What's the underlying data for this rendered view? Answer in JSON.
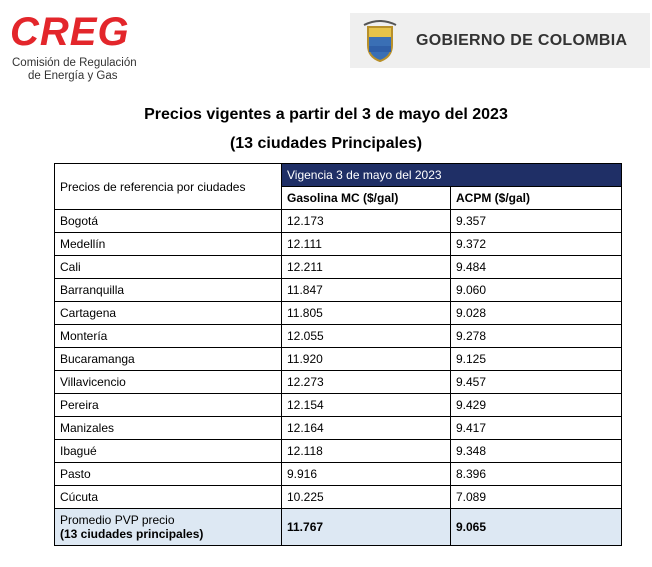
{
  "header": {
    "logo_text": "CREG",
    "logo_subtitle_1": "Comisión de Regulación",
    "logo_subtitle_2": "de Energía y Gas",
    "government": "GOBIERNO DE COLOMBIA"
  },
  "title": "Precios vigentes a partir del 3 de mayo del 2023",
  "subtitle": "(13 ciudades Principales)",
  "table": {
    "row_header": "Precios de referencia por ciudades",
    "group_header": "Vigencia 3 de mayo del 2023",
    "columns": [
      "Gasolina MC ($/gal)",
      "ACPM ($/gal)"
    ],
    "rows": [
      [
        "Bogotá",
        "12.173",
        "9.357"
      ],
      [
        "Medellín",
        "12.111",
        "9.372"
      ],
      [
        "Cali",
        "12.211",
        "9.484"
      ],
      [
        "Barranquilla",
        "11.847",
        "9.060"
      ],
      [
        "Cartagena",
        "11.805",
        "9.028"
      ],
      [
        "Montería",
        "12.055",
        "9.278"
      ],
      [
        "Bucaramanga",
        "11.920",
        "9.125"
      ],
      [
        "Villavicencio",
        "12.273",
        "9.457"
      ],
      [
        "Pereira",
        "12.154",
        "9.429"
      ],
      [
        "Manizales",
        "12.164",
        "9.417"
      ],
      [
        "Ibagué",
        "12.118",
        "9.348"
      ],
      [
        "Pasto",
        "9.916",
        "8.396"
      ],
      [
        "Cúcuta",
        "10.225",
        "7.089"
      ]
    ],
    "footer": {
      "label_1": "Promedio PVP precio",
      "label_2": "(13 ciudades principales)",
      "values": [
        "11.767",
        "9.065"
      ]
    }
  }
}
